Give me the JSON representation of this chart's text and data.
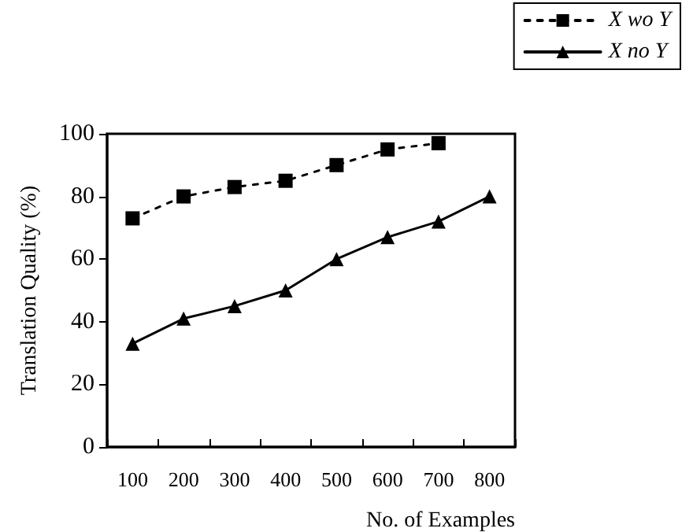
{
  "chart_data": {
    "type": "line",
    "xlabel": "No. of Examples",
    "ylabel": "Translation Quality (%)",
    "categories": [
      "100",
      "200",
      "300",
      "400",
      "500",
      "600",
      "700",
      "800"
    ],
    "series": [
      {
        "name": "X wo Y",
        "color": "#000000",
        "marker": "square",
        "line_style": "dashed",
        "values": [
          73,
          80,
          83,
          85,
          90,
          95,
          97,
          null
        ]
      },
      {
        "name": "X no Y",
        "color": "#000000",
        "marker": "triangle",
        "line_style": "solid",
        "values": [
          33,
          41,
          45,
          50,
          60,
          67,
          72,
          80
        ]
      }
    ],
    "ylim": [
      0,
      100
    ],
    "yticks": [
      0,
      20,
      40,
      60,
      80,
      100
    ],
    "grid": false,
    "legend": "top right"
  }
}
